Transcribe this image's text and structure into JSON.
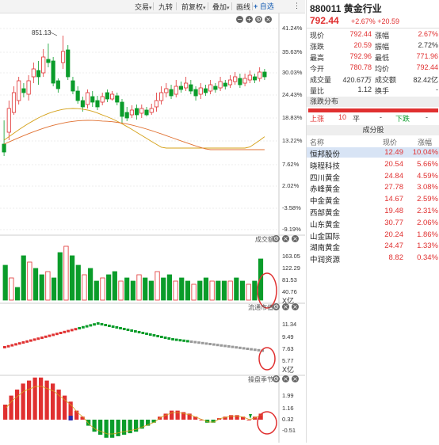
{
  "toolbar": {
    "items": [
      "交易",
      "九转",
      "前复权",
      "叠加",
      "画线"
    ],
    "add_label": "自选"
  },
  "main_chart": {
    "high_label": "851.13",
    "y_labels": [
      "41.24%",
      "35.63%",
      "30.03%",
      "24.43%",
      "18.83%",
      "13.22%",
      "7.62%",
      "2.02%",
      "-3.58%",
      "-9.19%"
    ]
  },
  "volume_panel": {
    "title": "成交额",
    "y_labels": [
      "163.05",
      "122.29",
      "81.53",
      "40.76"
    ],
    "unit": "X亿"
  },
  "flow_panel": {
    "title": "流通市值",
    "y_labels": [
      "11.34",
      "9.49",
      "7.63",
      "5.77"
    ],
    "unit": "X亿"
  },
  "macd_panel": {
    "title": "操盘季节",
    "y_labels": [
      "1.99",
      "1.16",
      "0.32",
      "-0.51"
    ]
  },
  "stock": {
    "code_name": "880011 黄金行业",
    "price": "792.44",
    "change": "+2.67% +20.59"
  },
  "quote": {
    "rows": [
      {
        "l1": "现价",
        "v1": "792.44",
        "c1": "red",
        "l2": "涨幅",
        "v2": "2.67%",
        "c2": "red"
      },
      {
        "l1": "涨跌",
        "v1": "20.59",
        "c1": "red",
        "l2": "振幅",
        "v2": "2.72%",
        "c2": ""
      },
      {
        "l1": "最高",
        "v1": "792.96",
        "c1": "red",
        "l2": "最低",
        "v2": "771.96",
        "c2": "red"
      },
      {
        "l1": "今开",
        "v1": "780.78",
        "c1": "red",
        "l2": "均价",
        "v2": "792.44",
        "c2": "red"
      },
      {
        "l1": "成交量",
        "v1": "420.67万",
        "c1": "",
        "l2": "成交额",
        "v2": "82.42亿",
        "c2": ""
      },
      {
        "l1": "量比",
        "v1": "1.12",
        "c1": "",
        "l2": "换手",
        "v2": "-",
        "c2": ""
      }
    ]
  },
  "distribution": {
    "title": "涨跌分布",
    "up_label": "上涨",
    "up_count": "10",
    "flat_label": "平",
    "flat_count": "-",
    "down_label": "下跌",
    "down_count": "-"
  },
  "components": {
    "title": "成分股",
    "headers": [
      "名称",
      "现价",
      "涨幅"
    ],
    "rows": [
      {
        "name": "恒邦股份",
        "price": "12.49",
        "chg": "10.04%"
      },
      {
        "name": "晓程科技",
        "price": "20.54",
        "chg": "5.66%"
      },
      {
        "name": "四川黄金",
        "price": "24.84",
        "chg": "4.59%"
      },
      {
        "name": "赤峰黄金",
        "price": "27.78",
        "chg": "3.08%"
      },
      {
        "name": "中金黄金",
        "price": "14.67",
        "chg": "2.59%"
      },
      {
        "name": "西部黄金",
        "price": "19.48",
        "chg": "2.31%"
      },
      {
        "name": "山东黄金",
        "price": "30.77",
        "chg": "2.06%"
      },
      {
        "name": "山金国际",
        "price": "20.24",
        "chg": "1.86%"
      },
      {
        "name": "湖南黄金",
        "price": "24.47",
        "chg": "1.33%"
      },
      {
        "name": "中润资源",
        "price": "8.82",
        "chg": "0.34%"
      }
    ]
  },
  "colors": {
    "up": "#e03030",
    "down": "#0a9c2a",
    "ma1": "#d4a017",
    "ma2": "#e07030",
    "highlight": "#e03030"
  }
}
